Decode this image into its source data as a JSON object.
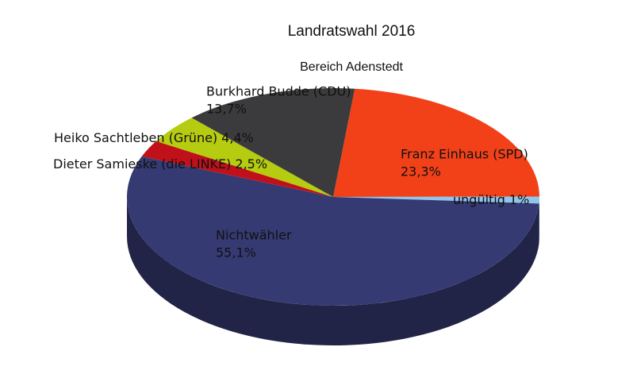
{
  "chart_data": {
    "type": "pie",
    "title": "Landratswahl 2016",
    "subtitle": "Bereich Adenstedt",
    "categories": [
      "Franz Einhaus (SPD)",
      "ungültig",
      "Nichtwähler",
      "Dieter Samieske (die LINKE)",
      "Heiko Sachtleben (Grüne)",
      "Burkhard Budde (CDU)"
    ],
    "values": [
      23.3,
      1,
      55.1,
      2.5,
      4.4,
      13.7
    ],
    "value_labels": [
      "23,3%",
      "1%",
      "55,1%",
      "2,5%",
      "4,4%",
      "13,7%"
    ],
    "colors": [
      "#f24119",
      "#8ec6ee",
      "#353a72",
      "#c0111b",
      "#b5cc10",
      "#3b3b3e"
    ]
  }
}
